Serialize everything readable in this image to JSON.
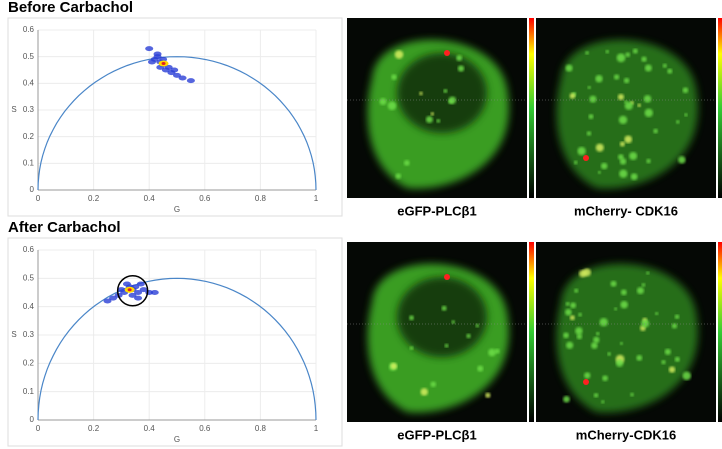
{
  "chart_data": [
    {
      "type": "scatter",
      "title": "Before Carbachol",
      "xlabel": "G",
      "ylabel": "S",
      "color": "#2b3fd6",
      "x": [
        0.42,
        0.43,
        0.44,
        0.45,
        0.41,
        0.44,
        0.46,
        0.48,
        0.5,
        0.52,
        0.47,
        0.43,
        0.45,
        0.49,
        0.55,
        0.4
      ],
      "y": [
        0.49,
        0.5,
        0.48,
        0.47,
        0.48,
        0.46,
        0.45,
        0.44,
        0.43,
        0.42,
        0.46,
        0.51,
        0.49,
        0.45,
        0.41,
        0.53
      ],
      "xlim": [
        0,
        1
      ],
      "ylim": [
        0,
        0.6
      ],
      "xticks": [
        0,
        0.2,
        0.4,
        0.6,
        0.8,
        1
      ],
      "yticks": [
        0,
        0.1,
        0.2,
        0.3,
        0.4,
        0.5,
        0.6
      ]
    },
    {
      "type": "scatter",
      "title": "After Carbachol",
      "xlabel": "G",
      "ylabel": "S",
      "color": "#2b3fd6",
      "x": [
        0.35,
        0.34,
        0.36,
        0.33,
        0.31,
        0.29,
        0.27,
        0.38,
        0.4,
        0.42,
        0.37,
        0.32,
        0.3,
        0.36,
        0.34,
        0.25
      ],
      "y": [
        0.47,
        0.46,
        0.45,
        0.47,
        0.45,
        0.44,
        0.43,
        0.46,
        0.45,
        0.45,
        0.48,
        0.48,
        0.46,
        0.43,
        0.44,
        0.42
      ],
      "xlim": [
        0,
        1
      ],
      "ylim": [
        0,
        0.6
      ],
      "xticks": [
        0,
        0.2,
        0.4,
        0.6,
        0.8,
        1
      ],
      "yticks": [
        0,
        0.1,
        0.2,
        0.3,
        0.4,
        0.5,
        0.6
      ]
    }
  ],
  "images": [
    {
      "label": "eGFP-PLCβ1"
    },
    {
      "label": "mCherry- CDK16"
    },
    {
      "label": "eGFP-PLCβ1"
    },
    {
      "label": "mCherry-CDK16"
    }
  ]
}
